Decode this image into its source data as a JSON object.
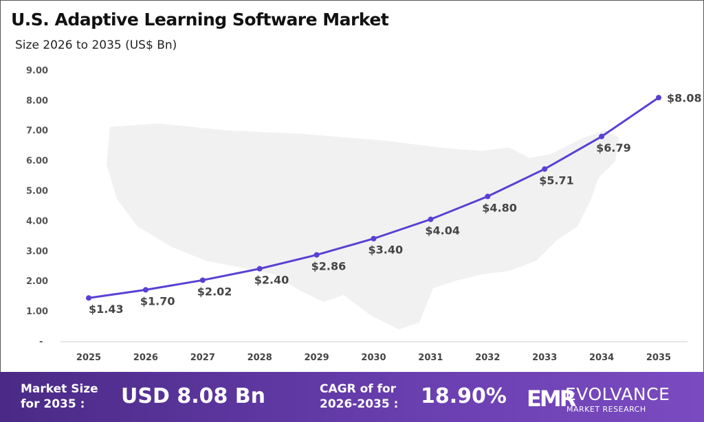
{
  "chart_data": {
    "type": "line",
    "title": "U.S. Adaptive Learning Software Market",
    "subtitle": "Size 2026 to 2035 (US$ Bn)",
    "categories": [
      "2025",
      "2026",
      "2027",
      "2028",
      "2029",
      "2030",
      "2031",
      "2032",
      "2033",
      "2034",
      "2035"
    ],
    "series": [
      {
        "values": [
          1.43,
          1.7,
          2.02,
          2.4,
          2.86,
          3.4,
          4.04,
          4.8,
          5.71,
          6.79,
          8.08
        ]
      }
    ],
    "data_labels": [
      "$1.43",
      "$1.70",
      "$2.02",
      "$2.40",
      "$2.86",
      "$3.40",
      "$4.04",
      "$4.80",
      "$5.71",
      "$6.79",
      "$8.08"
    ],
    "y_ticks": [
      "-",
      "1.00",
      "2.00",
      "3.00",
      "4.00",
      "5.00",
      "6.00",
      "7.00",
      "8.00",
      "9.00"
    ],
    "ylim": [
      0,
      9
    ],
    "grid": false,
    "line_color": "#5a3fd4",
    "background_image": "us-map-silhouette"
  },
  "footer": {
    "market_size_label_1": "Market Size",
    "market_size_label_2": "for 2035 :",
    "market_size_value": "USD 8.08 Bn",
    "cagr_label_1": "CAGR of for",
    "cagr_label_2": "2026-2035 :",
    "cagr_value": "18.90%",
    "logo_mark": "EMR",
    "logo_name": "EVOLVANCE",
    "logo_sub": "MARKET RESEARCH"
  }
}
